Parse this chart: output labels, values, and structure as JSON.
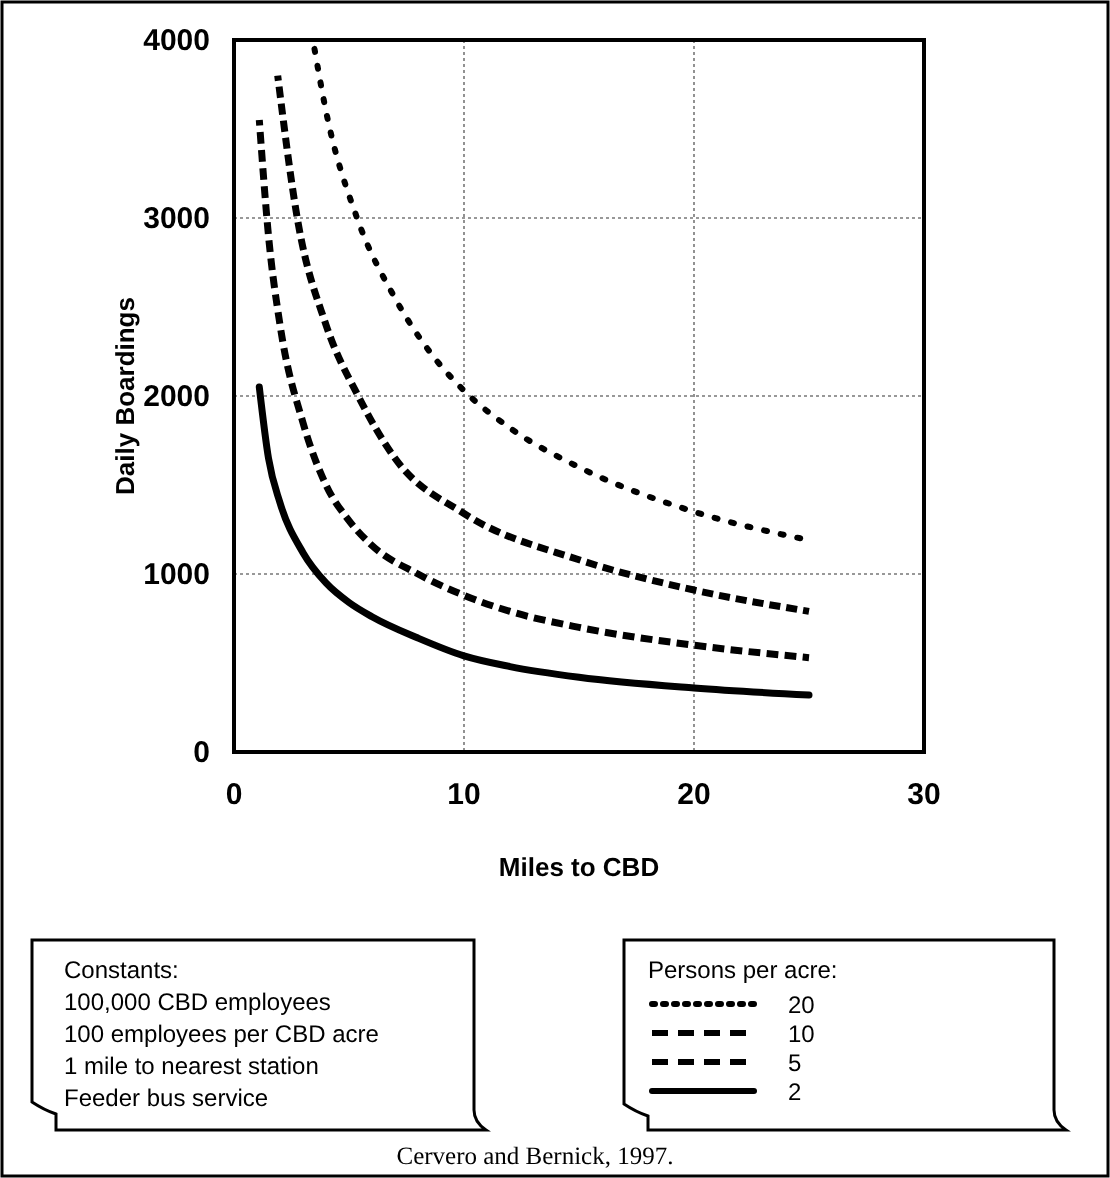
{
  "chart_data": {
    "type": "line",
    "xlabel": "Miles to CBD",
    "ylabel": "Daily Boardings",
    "legend_title": "Persons per acre:",
    "xlim": [
      0,
      30
    ],
    "xticks": [
      0,
      10,
      20,
      30
    ],
    "ylim": [
      0,
      4000
    ],
    "yticks": [
      0,
      1000,
      2000,
      3000,
      4000
    ],
    "grid": true,
    "legend": "bottom right",
    "series": [
      {
        "name": "20",
        "color": "#000000",
        "line_style": "dotted",
        "x": [
          3.5,
          4,
          5.35,
          7,
          8.5,
          10,
          12,
          15,
          20,
          25
        ],
        "values": [
          3950,
          3600,
          3000,
          2550,
          2250,
          2030,
          1820,
          1600,
          1350,
          1190
        ]
      },
      {
        "name": "10",
        "color": "#000000",
        "line_style": "dashed",
        "x": [
          1.9,
          2.75,
          4,
          5.4,
          7,
          10,
          15,
          20,
          25
        ],
        "values": [
          3800,
          3000,
          2400,
          2000,
          1650,
          1340,
          1080,
          910,
          790
        ]
      },
      {
        "name": "5",
        "color": "#000000",
        "line_style": "dashed",
        "x": [
          1.1,
          1.5,
          2,
          3,
          4,
          5,
          6,
          8,
          10,
          12,
          15,
          20,
          25
        ],
        "values": [
          3550,
          2900,
          2400,
          1850,
          1500,
          1300,
          1160,
          1000,
          880,
          790,
          700,
          600,
          530
        ]
      },
      {
        "name": "2",
        "color": "#000000",
        "line_style": "solid",
        "x": [
          1.1,
          1.5,
          2,
          3,
          4,
          5,
          6,
          8,
          10,
          12,
          15,
          20,
          25
        ],
        "values": [
          2050,
          1650,
          1400,
          1120,
          950,
          840,
          760,
          640,
          540,
          480,
          420,
          360,
          320
        ]
      }
    ],
    "annotations": [
      "Constants:",
      "100,000 CBD employees",
      "100 employees per CBD acre",
      "1 mile to nearest station",
      "Feeder bus service",
      "Cervero and Bernick, 1997."
    ]
  }
}
